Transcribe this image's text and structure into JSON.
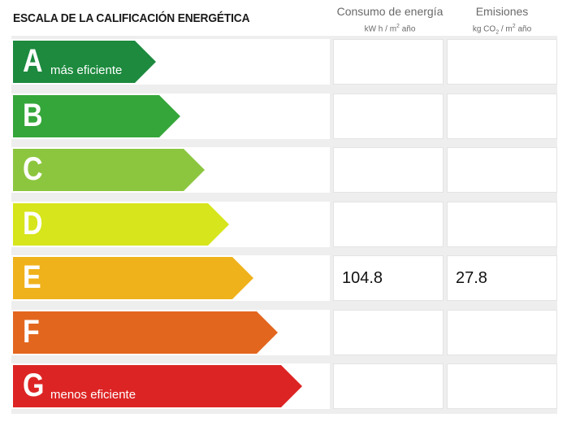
{
  "title": "ESCALA DE LA CALIFICACIÓN ENERGÉTICA",
  "columns": {
    "consumo": {
      "label": "Consumo de energía",
      "unit_prefix": "kW h / m",
      "unit_sup": "2",
      "unit_suffix": " año"
    },
    "emisiones": {
      "label": "Emisiones",
      "unit_prefix": "kg CO",
      "unit_sub": "2",
      "unit_mid": " / m",
      "unit_sup": "2",
      "unit_suffix": " año"
    }
  },
  "ratings": [
    {
      "letter": "A",
      "sublabel": "más eficiente",
      "color": "#1d8a3e",
      "consumo": "",
      "emisiones": ""
    },
    {
      "letter": "B",
      "sublabel": "",
      "color": "#35a63a",
      "consumo": "",
      "emisiones": ""
    },
    {
      "letter": "C",
      "sublabel": "",
      "color": "#8cc63f",
      "consumo": "",
      "emisiones": ""
    },
    {
      "letter": "D",
      "sublabel": "",
      "color": "#d7e51c",
      "consumo": "",
      "emisiones": ""
    },
    {
      "letter": "E",
      "sublabel": "",
      "color": "#f0b21b",
      "consumo": "104.8",
      "emisiones": "27.8"
    },
    {
      "letter": "F",
      "sublabel": "",
      "color": "#e3661f",
      "consumo": "",
      "emisiones": ""
    },
    {
      "letter": "G",
      "sublabel": "menos eficiente",
      "color": "#dd2424",
      "consumo": "",
      "emisiones": ""
    }
  ]
}
